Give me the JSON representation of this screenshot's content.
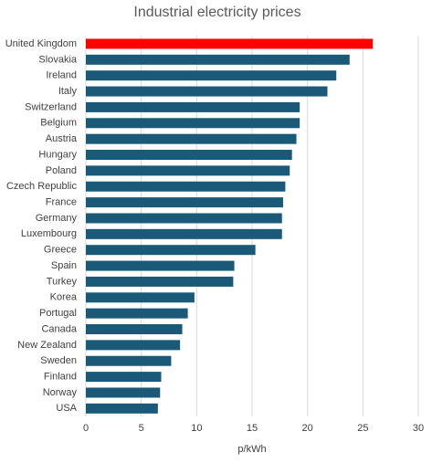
{
  "chart_data": {
    "type": "hbar",
    "title": "Industrial electricity prices",
    "x_label": "p/kWh",
    "categories": [
      "United Kingdom",
      "Slovakia",
      "Ireland",
      "Italy",
      "Switzerland",
      "Belgium",
      "Austria",
      "Hungary",
      "Poland",
      "Czech Republic",
      "France",
      "Germany",
      "Luxembourg",
      "Greece",
      "Spain",
      "Turkey",
      "Korea",
      "Portugal",
      "Canada",
      "New Zealand",
      "Sweden",
      "Finland",
      "Norway",
      "USA"
    ],
    "values": [
      25.9,
      23.8,
      22.6,
      21.8,
      19.3,
      19.3,
      19.0,
      18.6,
      18.4,
      18.0,
      17.8,
      17.7,
      17.7,
      15.3,
      13.4,
      13.3,
      9.8,
      9.2,
      8.7,
      8.5,
      7.7,
      6.8,
      6.7,
      6.5
    ],
    "colors": [
      "#ff0000",
      "#1a5a78",
      "#1a5a78",
      "#1a5a78",
      "#1a5a78",
      "#1a5a78",
      "#1a5a78",
      "#1a5a78",
      "#1a5a78",
      "#1a5a78",
      "#1a5a78",
      "#1a5a78",
      "#1a5a78",
      "#1a5a78",
      "#1a5a78",
      "#1a5a78",
      "#1a5a78",
      "#1a5a78",
      "#1a5a78",
      "#1a5a78",
      "#1a5a78",
      "#1a5a78",
      "#1a5a78",
      "#1a5a78"
    ],
    "xlim": [
      0,
      30
    ],
    "xticks": [
      0,
      5,
      10,
      15,
      20,
      25,
      30
    ],
    "grid": true
  }
}
